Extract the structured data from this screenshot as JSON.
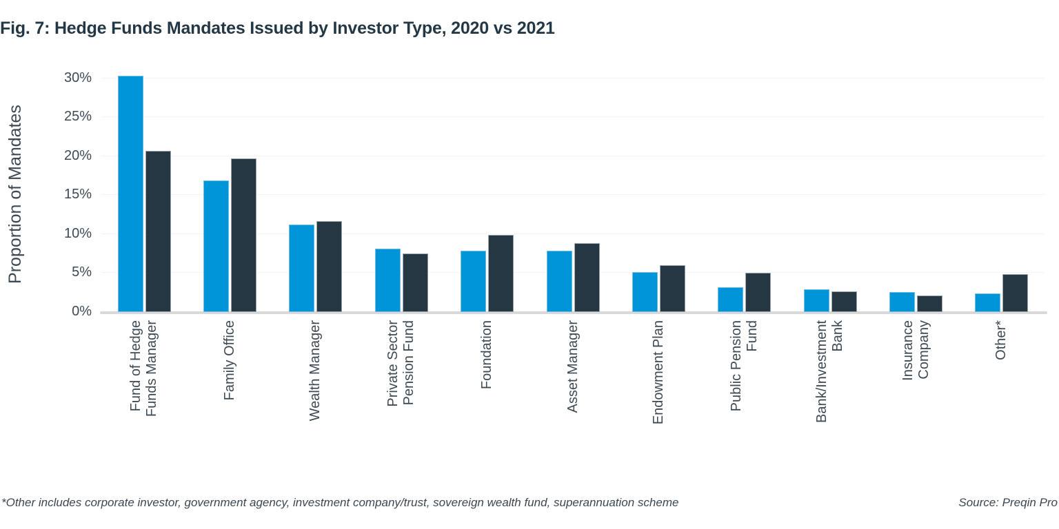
{
  "title": "Fig. 7: Hedge Funds Mandates Issued by Investor Type, 2020 vs 2021",
  "footer": {
    "footnote": "*Other includes corporate investor, government agency, investment company/trust, sovereign wealth fund, superannuation scheme",
    "source": "Source: Preqin Pro"
  },
  "colors": {
    "title_text": "#233744",
    "axis_text": "#3d4953",
    "bar_2020": "#0095d8",
    "bar_2021": "#253742",
    "bar_2020_border": "#6fbde6",
    "bar_2021_border": "#9aa4ab",
    "gridline": "#f3f3f3",
    "baseline": "#d9d9d9"
  },
  "chart_data": {
    "type": "bar",
    "title": "Fig. 7: Hedge Funds Mandates Issued by Investor Type, 2020 vs 2021",
    "ylabel": "Proportion of Mandates",
    "xlabel": "",
    "ylim": [
      0,
      30
    ],
    "ytick_step": 5,
    "ytick_suffix": "%",
    "grid": true,
    "legend": "none",
    "categories": [
      "Fund of Hedge\nFunds Manager",
      "Family Office",
      "Wealth Manager",
      "Private Sector\nPension Fund",
      "Foundation",
      "Asset Manager",
      "Endowment Plan",
      "Public Pension\nFund",
      "Bank/Investment\nBank",
      "Insurance\nCompany",
      "Other*"
    ],
    "series": [
      {
        "name": "2020",
        "color": "#0095d8",
        "values": [
          30.3,
          16.9,
          11.2,
          8.1,
          7.9,
          7.9,
          5.1,
          3.2,
          2.9,
          2.6,
          2.4
        ]
      },
      {
        "name": "2021",
        "color": "#253742",
        "values": [
          20.7,
          19.7,
          11.7,
          7.5,
          9.9,
          8.8,
          6.0,
          5.0,
          2.7,
          2.1,
          4.9
        ]
      }
    ]
  }
}
